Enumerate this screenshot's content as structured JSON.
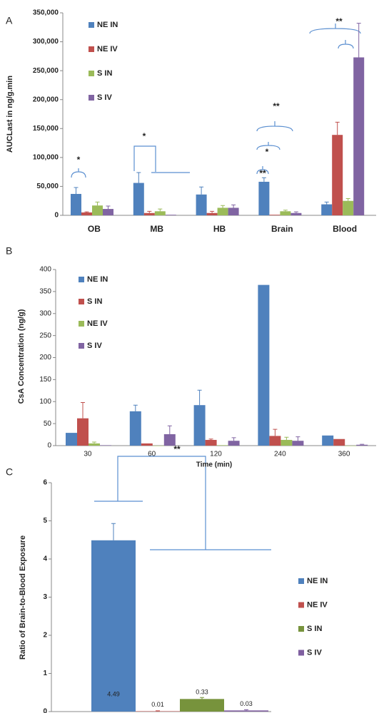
{
  "chart_data": [
    {
      "type": "bar",
      "panel": "A",
      "ylabel": "AUCLast in ng/g.min",
      "categories": [
        "OB",
        "MB",
        "HB",
        "Brain",
        "Blood"
      ],
      "series": [
        {
          "name": "NE IN",
          "color": "#4f81bd",
          "values": [
            37000,
            56000,
            36000,
            58000,
            19000
          ],
          "errors": [
            11000,
            18000,
            13000,
            7000,
            4000
          ]
        },
        {
          "name": "NE IV",
          "color": "#c0504d",
          "values": [
            5000,
            4000,
            4000,
            1000,
            139000
          ],
          "errors": [
            1000,
            3000,
            3000,
            0,
            22000
          ]
        },
        {
          "name": "S IN",
          "color": "#9bbb59",
          "values": [
            17000,
            7000,
            13000,
            7000,
            25000
          ],
          "errors": [
            6000,
            4000,
            4000,
            2000,
            4000
          ]
        },
        {
          "name": "S IV",
          "color": "#8064a2",
          "values": [
            11000,
            1000,
            13000,
            4000,
            273000
          ],
          "errors": [
            5000,
            0,
            5000,
            2000,
            59000
          ]
        }
      ],
      "ylim": [
        0,
        350000
      ],
      "yticks": [
        0,
        {
          "value": 50000,
          "label": "50,000"
        },
        {
          "value": 100000,
          "label": "100,000"
        },
        {
          "value": 150000,
          "label": "150,000"
        },
        {
          "value": 200000,
          "label": "200,000"
        },
        {
          "value": 250000,
          "label": "250,000"
        },
        {
          "value": 300000,
          "label": "300,000"
        },
        {
          "value": 350000,
          "label": "350,000"
        }
      ],
      "annotations": [
        "*",
        "*",
        "**",
        "*",
        "**",
        "**"
      ]
    },
    {
      "type": "bar",
      "panel": "B",
      "ylabel": "CsA Concentration (ng/g)",
      "xlabel": "Time (min)",
      "categories": [
        "30",
        "60",
        "120",
        "240",
        "360"
      ],
      "series": [
        {
          "name": "NE IN",
          "color": "#4f81bd",
          "values": [
            29,
            78,
            92,
            365,
            23
          ],
          "errors": [
            0,
            14,
            34,
            0,
            0
          ]
        },
        {
          "name": "S IN",
          "color": "#c0504d",
          "values": [
            62,
            5,
            13,
            22,
            15
          ],
          "errors": [
            36,
            0,
            2,
            15,
            0
          ]
        },
        {
          "name": "NE IV",
          "color": "#9bbb59",
          "values": [
            5,
            0,
            1,
            13,
            0
          ],
          "errors": [
            3,
            0,
            0,
            6,
            0
          ]
        },
        {
          "name": "S IV",
          "color": "#8064a2",
          "values": [
            1,
            26,
            11,
            11,
            2
          ],
          "errors": [
            0,
            19,
            7,
            9,
            1
          ]
        }
      ],
      "ylim": [
        0,
        400
      ],
      "yticks": [
        0,
        50,
        100,
        150,
        200,
        250,
        300,
        350,
        400
      ]
    },
    {
      "type": "bar",
      "panel": "C",
      "ylabel": "Ratio of Brain-to-Blood Exposure",
      "categories": [
        null
      ],
      "series": [
        {
          "name": "NE IN",
          "color": "#4f81bd",
          "values": [
            4.49
          ],
          "errors": [
            0.44
          ]
        },
        {
          "name": "NE IV",
          "color": "#c0504d",
          "values": [
            0.01
          ],
          "errors": [
            0.01
          ]
        },
        {
          "name": "S IN",
          "color": "#77933c",
          "values": [
            0.33
          ],
          "errors": [
            0.04
          ]
        },
        {
          "name": "S IV",
          "color": "#7f5fa0",
          "values": [
            0.03
          ],
          "errors": [
            0.02
          ]
        }
      ],
      "ylim": [
        0,
        6
      ],
      "yticks": [
        0,
        1,
        2,
        3,
        4,
        5,
        6
      ],
      "annotations": [
        "**"
      ]
    }
  ]
}
